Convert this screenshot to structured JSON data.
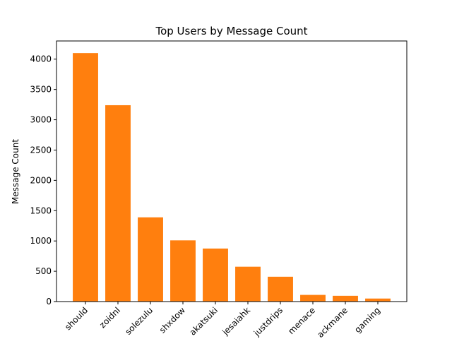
{
  "chart_data": {
    "type": "bar",
    "title": "Top Users by Message Count",
    "xlabel": "",
    "ylabel": "Message Count",
    "categories": [
      "should",
      "zoidnl",
      "solezulu",
      "shxdow",
      "akatsuki",
      "jesaiahk",
      "justdrips",
      "menace",
      "ackmane",
      "gaming"
    ],
    "values": [
      4100,
      3240,
      1390,
      1010,
      875,
      575,
      410,
      110,
      95,
      50
    ],
    "ylim": [
      0,
      4300
    ],
    "yticks": [
      0,
      500,
      1000,
      1500,
      2000,
      2500,
      3000,
      3500,
      4000
    ],
    "grid": false,
    "bar_color": "#ff7f0e"
  }
}
